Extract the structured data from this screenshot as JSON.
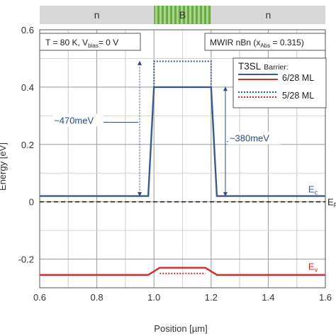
{
  "chart_data": {
    "type": "line",
    "xlabel": "Position [µm]",
    "ylabel": "Energy [eV]",
    "xlim": [
      0.6,
      1.6
    ],
    "ylim": [
      -0.3,
      0.6
    ],
    "x_ticks": [
      "0.6",
      "0.8",
      "1.0",
      "1.2",
      "1.4",
      "1.6"
    ],
    "y_ticks": [
      "-0.2",
      "0",
      "0.2",
      "0.4",
      "0.6"
    ],
    "x_tick_values": [
      0.6,
      0.8,
      1.0,
      1.2,
      1.4,
      1.6
    ],
    "y_tick_values": [
      -0.2,
      0,
      0.2,
      0.4,
      0.6
    ],
    "grid": true,
    "regions": [
      {
        "label": "n",
        "x_start": 0.6,
        "x_end": 1.0,
        "color": "#d7d7d7"
      },
      {
        "label": "B",
        "x_start": 1.0,
        "x_end": 1.2,
        "color": "#8fc26a"
      },
      {
        "label": "n",
        "x_start": 1.2,
        "x_end": 1.6,
        "color": "#d7d7d7"
      }
    ],
    "conditions_box": {
      "prefix": "T = 80 K, V",
      "sub": "bias",
      "suffix": "= 0 V"
    },
    "device_box": {
      "prefix": "MWIR nBn (x",
      "sub": "Abs",
      "suffix": " = 0.315)"
    },
    "legend": {
      "title": "T3SL",
      "title_small": "Barrier:",
      "entries": [
        "6/28 ML",
        "5/28 ML"
      ],
      "placement": "top-right"
    },
    "series": [
      {
        "name": "6/28 ML",
        "band": "Ec",
        "color": "#3d5a8c",
        "style": "solid",
        "x": [
          0.6,
          0.98,
          1.0,
          1.2,
          1.22,
          1.6
        ],
        "y": [
          0.02,
          0.02,
          0.4,
          0.4,
          0.02,
          0.02
        ]
      },
      {
        "name": "5/28 ML",
        "band": "Ec",
        "color": "#3d5a8c",
        "style": "dotted",
        "x": [
          1.0,
          1.0,
          1.2,
          1.2
        ],
        "y": [
          0.4,
          0.49,
          0.49,
          0.4
        ]
      },
      {
        "name": "6/28 ML",
        "band": "Ev",
        "color": "#d62a2a",
        "style": "solid",
        "x": [
          0.6,
          0.98,
          1.02,
          1.18,
          1.22,
          1.6
        ],
        "y": [
          -0.255,
          -0.255,
          -0.23,
          -0.23,
          -0.255,
          -0.255
        ]
      },
      {
        "name": "5/28 ML",
        "band": "Ev",
        "color": "#d62a2a",
        "style": "dotted",
        "x": [
          1.02,
          1.18
        ],
        "y": [
          -0.25,
          -0.25
        ]
      }
    ],
    "fermi_level": {
      "y": 0,
      "label": "E",
      "label_sub": "F",
      "color": "#222"
    },
    "band_labels": [
      {
        "text": "E",
        "sub": "c",
        "color": "#3d5a8c",
        "x": 1.57,
        "y": 0.045
      },
      {
        "text": "E",
        "sub": "v",
        "color": "#d62a2a",
        "x": 1.57,
        "y": -0.225
      }
    ],
    "annotations": [
      {
        "text": "~470meV",
        "arrow_x": 0.95,
        "y_from": 0.02,
        "y_to": 0.49
      },
      {
        "text": "~380meV",
        "arrow_x": 1.25,
        "y_from": 0.02,
        "y_to": 0.4
      }
    ]
  }
}
